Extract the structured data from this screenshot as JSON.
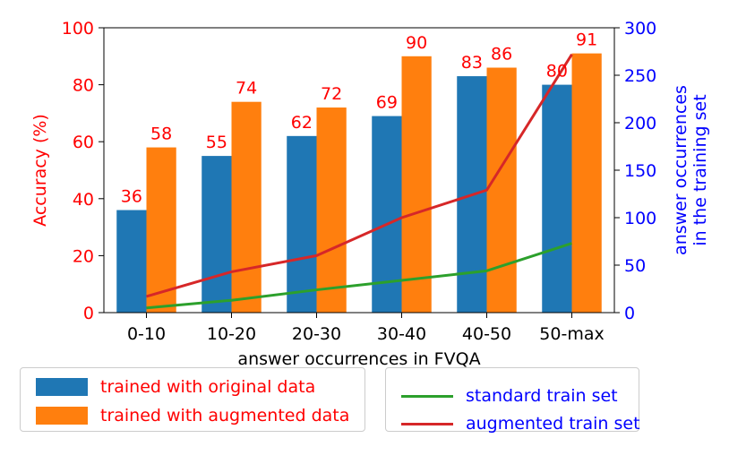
{
  "chart_data": {
    "type": "bar",
    "categories": [
      "0-10",
      "10-20",
      "20-30",
      "30-40",
      "40-50",
      "50-max"
    ],
    "xlabel": "answer occurrences in FVQA",
    "ylabel_left": "Accuracy (%)",
    "ylabel_right_lines": [
      "answer occurrences",
      "in the training set"
    ],
    "ylim_left": [
      0,
      100
    ],
    "ylim_right": [
      0,
      300
    ],
    "yticks_left": [
      0,
      20,
      40,
      60,
      80,
      100
    ],
    "yticks_right": [
      0,
      50,
      100,
      150,
      200,
      250,
      300
    ],
    "grid": false,
    "bar_series": [
      {
        "name": "trained with original data",
        "color": "#1f77b4",
        "values": [
          36,
          55,
          62,
          69,
          83,
          80
        ]
      },
      {
        "name": "trained with augmented data",
        "color": "#ff7f0e",
        "values": [
          58,
          74,
          72,
          90,
          86,
          91
        ]
      }
    ],
    "line_series": [
      {
        "name": "standard train set",
        "color": "#2ca02c",
        "axis": "right",
        "values": [
          5,
          13,
          24,
          34,
          44,
          73
        ]
      },
      {
        "name": "augmented train set",
        "color": "#d62728",
        "axis": "right",
        "values": [
          17,
          43,
          60,
          100,
          129,
          272
        ]
      }
    ],
    "left_axis_color": "#ff0000",
    "right_axis_color": "#0000ff",
    "legend_text_colors": {
      "bars": "#ff0000",
      "lines": "#0000ff"
    },
    "legend_placement": "below"
  }
}
